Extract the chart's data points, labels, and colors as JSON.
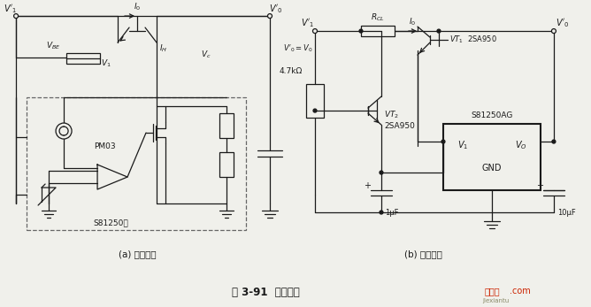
{
  "bg_color": "#f0f0eb",
  "line_color": "#1a1a1a",
  "title": "图 3-91  扩流电路",
  "subtitle_a": "(a) 基本电路",
  "subtitle_b": "(b) 应用实例",
  "watermark_color": "#cc2200"
}
